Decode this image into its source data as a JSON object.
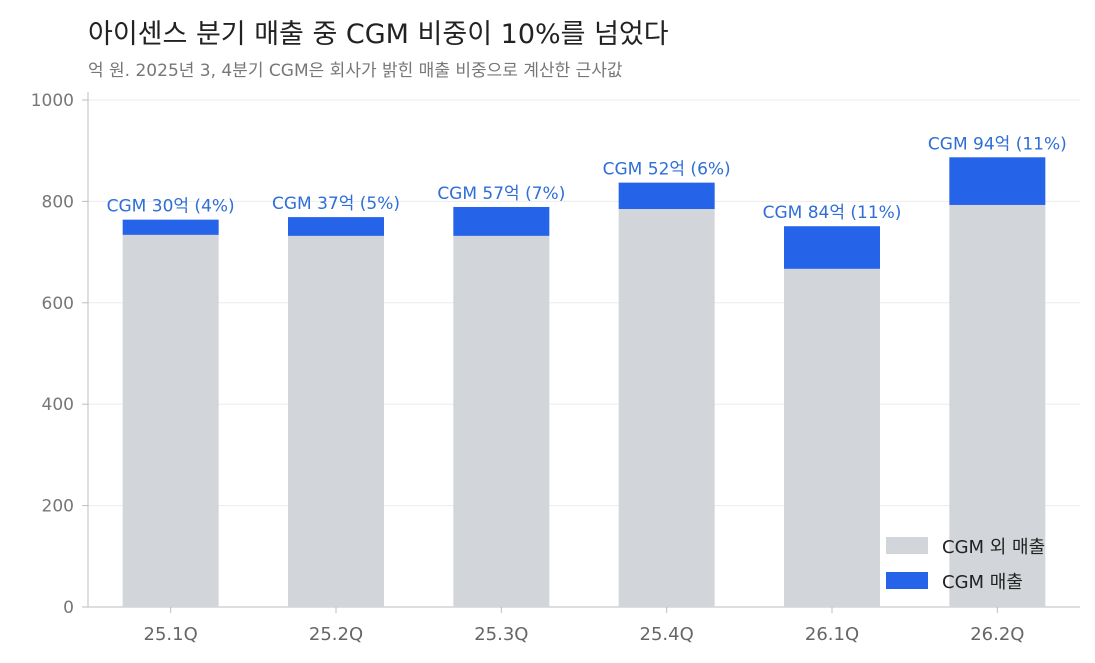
{
  "title": "아이센스 분기 매출 중 CGM 비중이 10%를 넘었다",
  "subtitle": "억 원. 2025년 3, 4분기 CGM은 회사가 밝힌 매출 비중으로 계산한 근사값",
  "colors": {
    "other": "#d2d5d9",
    "cgm": "#2563e8",
    "label": "#2f6ed6",
    "grid": "#e9ebee",
    "axis": "#bdbdbd"
  },
  "legend": [
    {
      "label": "CGM 외 매출",
      "color": "#d2d5d9"
    },
    {
      "label": "CGM 매출",
      "color": "#2563e8"
    }
  ],
  "chart_data": {
    "type": "bar",
    "stacked": true,
    "categories": [
      "25.1Q",
      "25.2Q",
      "25.3Q",
      "25.4Q",
      "26.1Q",
      "26.2Q"
    ],
    "series": [
      {
        "name": "CGM 외 매출",
        "values": [
          734,
          732,
          732,
          785,
          667,
          793
        ]
      },
      {
        "name": "CGM 매출",
        "values": [
          30,
          37,
          57,
          52,
          84,
          94
        ]
      }
    ],
    "bar_labels": [
      "CGM 30억 (4%)",
      "CGM 37억 (5%)",
      "CGM 57억 (7%)",
      "CGM 52억 (6%)",
      "CGM 84억 (11%)",
      "CGM 94억 (11%)"
    ],
    "ylim": [
      0,
      1000
    ],
    "yticks": [
      0,
      200,
      400,
      600,
      800,
      1000
    ],
    "grid": true,
    "legend_position": "bottom-right"
  }
}
